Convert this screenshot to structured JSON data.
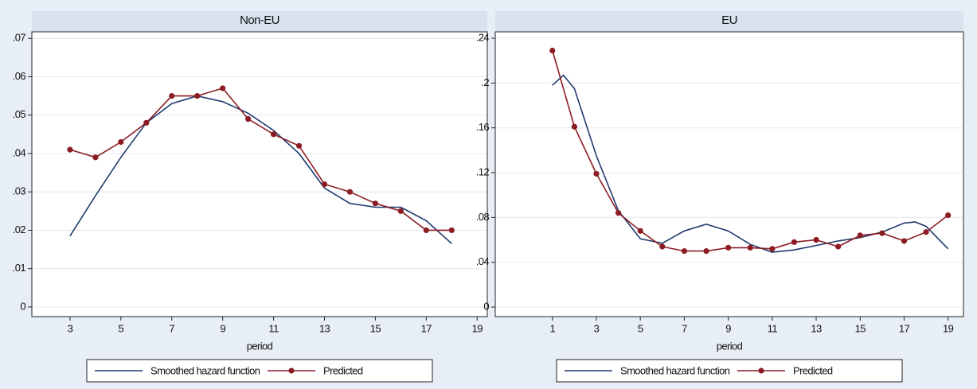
{
  "chart_data": [
    {
      "type": "line",
      "title": "Non-EU",
      "xlabel": "period",
      "xlim": [
        1.5,
        19.4
      ],
      "xticks": [
        3,
        5,
        7,
        9,
        11,
        13,
        15,
        17,
        19
      ],
      "ylim": [
        -0.0025,
        0.0717
      ],
      "yticks": [
        0,
        {
          "value": 0.01,
          "label": ".01"
        },
        {
          "value": 0.02,
          "label": ".02"
        },
        {
          "value": 0.03,
          "label": ".03"
        },
        {
          "value": 0.04,
          "label": ".04"
        },
        {
          "value": 0.05,
          "label": ".05"
        },
        {
          "value": 0.06,
          "label": ".06"
        },
        {
          "value": 0.07,
          "label": ".07"
        }
      ],
      "grid": true,
      "series": [
        {
          "name": "Smoothed hazard function",
          "color": "#1f3a6e",
          "markers": false,
          "x": [
            3,
            4,
            5,
            6,
            7,
            8,
            9,
            10,
            11,
            12,
            13,
            14,
            15,
            16,
            17,
            18
          ],
          "values": [
            0.0185,
            0.029,
            0.039,
            0.048,
            0.053,
            0.055,
            0.0535,
            0.0505,
            0.046,
            0.04,
            0.031,
            0.027,
            0.026,
            0.026,
            0.0225,
            0.0165
          ]
        },
        {
          "name": "Predicted",
          "color": "#8b1c24",
          "markers": true,
          "x": [
            3,
            4,
            5,
            6,
            7,
            8,
            9,
            10,
            11,
            12,
            13,
            14,
            15,
            16,
            17,
            18
          ],
          "values": [
            0.041,
            0.039,
            0.043,
            0.048,
            0.055,
            0.055,
            0.057,
            0.049,
            0.045,
            0.042,
            0.032,
            0.03,
            0.027,
            0.025,
            0.02,
            0.02
          ]
        }
      ]
    },
    {
      "type": "line",
      "title": "EU",
      "xlabel": "period",
      "xlim": [
        -1.6,
        19.7
      ],
      "xticks": [
        1,
        3,
        5,
        7,
        9,
        11,
        13,
        15,
        17,
        19
      ],
      "ylim": [
        -0.0085,
        0.2457
      ],
      "yticks": [
        0,
        {
          "value": 0.04,
          "label": ".04"
        },
        {
          "value": 0.08,
          "label": ".08"
        },
        {
          "value": 0.12,
          "label": ".12"
        },
        {
          "value": 0.16,
          "label": ".16"
        },
        {
          "value": 0.2,
          "label": ".2"
        },
        {
          "value": 0.24,
          "label": ".24"
        }
      ],
      "grid": true,
      "series": [
        {
          "name": "Smoothed hazard function",
          "color": "#1f3a6e",
          "markers": false,
          "x": [
            1,
            1.5,
            2,
            3,
            4,
            5,
            6,
            7,
            8,
            9,
            10,
            11,
            12,
            13,
            14,
            15,
            16,
            17,
            17.5,
            18,
            19
          ],
          "values": [
            0.198,
            0.207,
            0.195,
            0.135,
            0.086,
            0.061,
            0.057,
            0.068,
            0.074,
            0.068,
            0.056,
            0.049,
            0.051,
            0.055,
            0.059,
            0.062,
            0.067,
            0.075,
            0.076,
            0.072,
            0.052
          ]
        },
        {
          "name": "Predicted",
          "color": "#8b1c24",
          "markers": true,
          "x": [
            1,
            2,
            3,
            4,
            5,
            6,
            7,
            8,
            9,
            10,
            11,
            12,
            13,
            14,
            15,
            16,
            17,
            18,
            19
          ],
          "values": [
            0.229,
            0.161,
            0.119,
            0.084,
            0.068,
            0.054,
            0.05,
            0.05,
            0.053,
            0.053,
            0.052,
            0.058,
            0.06,
            0.054,
            0.064,
            0.066,
            0.059,
            0.067,
            0.082
          ]
        }
      ]
    }
  ]
}
